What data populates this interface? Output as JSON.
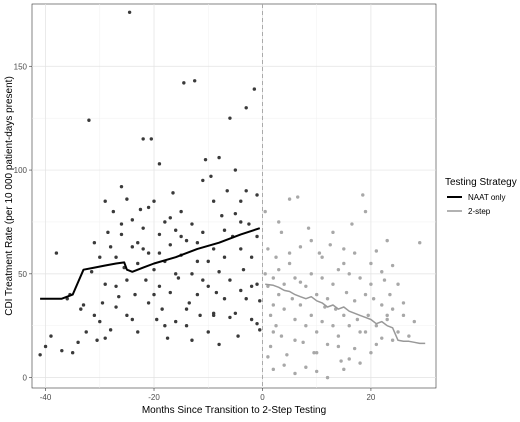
{
  "chart_data": {
    "type": "scatter",
    "title": "",
    "xlabel": "Months Since Transition to 2-Step Testing",
    "ylabel": "CDI Treatment Rate (per 10 000 patient-days present)",
    "xlim": [
      -42.5,
      32
    ],
    "ylim": [
      -5,
      180
    ],
    "x_ticks": [
      -40,
      -20,
      0,
      20
    ],
    "y_ticks": [
      0,
      50,
      100,
      150
    ],
    "grid": true,
    "vline": {
      "x": 0,
      "style": "dashed"
    },
    "legend": {
      "title": "Testing Strategy",
      "placement": "right",
      "entries": [
        {
          "label": "NAAT only",
          "color": "#000000"
        },
        {
          "label": "2-step",
          "color": "#999999"
        }
      ]
    },
    "series": [
      {
        "name": "NAAT only",
        "color": "#3a3a3a",
        "points": [
          [
            -41,
            11
          ],
          [
            -40,
            15
          ],
          [
            -39,
            20
          ],
          [
            -38,
            60
          ],
          [
            -37,
            13
          ],
          [
            -36,
            38
          ],
          [
            -35,
            12
          ],
          [
            -34,
            17
          ],
          [
            -33,
            35
          ],
          [
            -32.5,
            22
          ],
          [
            -32,
            124
          ],
          [
            -31.5,
            51
          ],
          [
            -31,
            30
          ],
          [
            -30.5,
            18
          ],
          [
            -30,
            27
          ],
          [
            -29.5,
            36
          ],
          [
            -29,
            19
          ],
          [
            -29,
            45
          ],
          [
            -28.5,
            70
          ],
          [
            -28,
            63
          ],
          [
            -28,
            23
          ],
          [
            -27.5,
            80
          ],
          [
            -27,
            58
          ],
          [
            -27,
            44
          ],
          [
            -26.5,
            39
          ],
          [
            -26,
            92
          ],
          [
            -26,
            69
          ],
          [
            -25.5,
            53
          ],
          [
            -25,
            86
          ],
          [
            -25,
            47
          ],
          [
            -25,
            30
          ],
          [
            -24.5,
            176
          ],
          [
            -24,
            76
          ],
          [
            -24,
            63
          ],
          [
            -23.5,
            40
          ],
          [
            -23,
            22
          ],
          [
            -23,
            55
          ],
          [
            -22.5,
            81
          ],
          [
            -22,
            115
          ],
          [
            -22,
            72
          ],
          [
            -21.5,
            47
          ],
          [
            -21,
            60
          ],
          [
            -21,
            36
          ],
          [
            -20.5,
            115
          ],
          [
            -20,
            85
          ],
          [
            -20,
            52
          ],
          [
            -19.5,
            28
          ],
          [
            -19,
            69
          ],
          [
            -19,
            44
          ],
          [
            -18.5,
            33
          ],
          [
            -18,
            75
          ],
          [
            -18,
            56
          ],
          [
            -17.5,
            19
          ],
          [
            -17,
            64
          ],
          [
            -17,
            41
          ],
          [
            -16.5,
            89
          ],
          [
            -16,
            71
          ],
          [
            -16,
            27
          ],
          [
            -15.5,
            48
          ],
          [
            -15,
            59
          ],
          [
            -15,
            80
          ],
          [
            -14.5,
            142
          ],
          [
            -14,
            33
          ],
          [
            -14,
            66
          ],
          [
            -13.5,
            36
          ],
          [
            -13,
            18
          ],
          [
            -13,
            50
          ],
          [
            -12.5,
            143
          ],
          [
            -12,
            65
          ],
          [
            -12,
            40
          ],
          [
            -11.5,
            30
          ],
          [
            -11,
            95
          ],
          [
            -11,
            70
          ],
          [
            -10.5,
            105
          ],
          [
            -10,
            56
          ],
          [
            -10,
            22
          ],
          [
            -9.5,
            97
          ],
          [
            -9,
            62
          ],
          [
            -9,
            85
          ],
          [
            -8.5,
            41
          ],
          [
            -8,
            106
          ],
          [
            -8,
            16
          ],
          [
            -7.5,
            78
          ],
          [
            -7,
            58
          ],
          [
            -7,
            38
          ],
          [
            -6.5,
            90
          ],
          [
            -6,
            125
          ],
          [
            -6,
            47
          ],
          [
            -5.5,
            68
          ],
          [
            -5,
            31
          ],
          [
            -5,
            100
          ],
          [
            -4.5,
            20
          ],
          [
            -4,
            62
          ],
          [
            -4,
            85
          ],
          [
            -3.5,
            52
          ],
          [
            -3,
            38
          ],
          [
            -3,
            130
          ],
          [
            -2.5,
            74
          ],
          [
            -2,
            28
          ],
          [
            -2,
            58
          ],
          [
            -1.5,
            139
          ],
          [
            -1,
            68
          ],
          [
            -1,
            45
          ],
          [
            -0.5,
            37
          ],
          [
            -0.5,
            23
          ],
          [
            -33.5,
            33
          ],
          [
            -31,
            65
          ],
          [
            -30,
            58
          ],
          [
            -27,
            34
          ],
          [
            -24,
            28
          ],
          [
            -22,
            62
          ],
          [
            -20,
            40
          ],
          [
            -18,
            25
          ],
          [
            -16,
            50
          ],
          [
            -14,
            25
          ],
          [
            -12,
            56
          ],
          [
            -10,
            44
          ],
          [
            -8,
            51
          ],
          [
            -6,
            29
          ],
          [
            -4,
            42
          ],
          [
            -2,
            44
          ],
          [
            -1,
            26
          ],
          [
            -29,
            85
          ],
          [
            -26,
            74
          ],
          [
            -23,
            65
          ],
          [
            -21,
            82
          ],
          [
            -19,
            60
          ],
          [
            -17,
            77
          ],
          [
            -15,
            68
          ],
          [
            -13,
            74
          ],
          [
            -11,
            47
          ],
          [
            -9,
            31
          ],
          [
            -7,
            71
          ],
          [
            -5,
            79
          ],
          [
            -3,
            90
          ],
          [
            -1,
            88
          ],
          [
            -35.5,
            40
          ],
          [
            -19,
            103
          ],
          [
            -9,
            30
          ],
          [
            -4,
            75
          ]
        ],
        "fit": [
          [
            -41,
            38
          ],
          [
            -37,
            38
          ],
          [
            -35,
            40
          ],
          [
            -34,
            46
          ],
          [
            -33,
            52
          ],
          [
            -31,
            53
          ],
          [
            -29,
            54
          ],
          [
            -27,
            55
          ],
          [
            -25.5,
            55.5
          ],
          [
            -25,
            52
          ],
          [
            -24,
            51
          ],
          [
            -22,
            53
          ],
          [
            -20,
            55
          ],
          [
            -16,
            58
          ],
          [
            -12,
            62
          ],
          [
            -8,
            65
          ],
          [
            -4,
            69
          ],
          [
            -0.5,
            72
          ]
        ]
      },
      {
        "name": "2-step",
        "color": "#a8a8a8",
        "points": [
          [
            0.5,
            50
          ],
          [
            0.5,
            80
          ],
          [
            1,
            62
          ],
          [
            1,
            44
          ],
          [
            1.5,
            30
          ],
          [
            1.5,
            15
          ],
          [
            2,
            48
          ],
          [
            2,
            35
          ],
          [
            2.5,
            58
          ],
          [
            2.5,
            25
          ],
          [
            3,
            52
          ],
          [
            3,
            40
          ],
          [
            3.5,
            70
          ],
          [
            3.5,
            20
          ],
          [
            4,
            45
          ],
          [
            4,
            33
          ],
          [
            4.5,
            11
          ],
          [
            5,
            86
          ],
          [
            5,
            55
          ],
          [
            5.5,
            38
          ],
          [
            6,
            28
          ],
          [
            6,
            48
          ],
          [
            6.5,
            87
          ],
          [
            7,
            63
          ],
          [
            7,
            35
          ],
          [
            7.5,
            17
          ],
          [
            8,
            44
          ],
          [
            8,
            25
          ],
          [
            8.5,
            72
          ],
          [
            9,
            30
          ],
          [
            9,
            50
          ],
          [
            9.5,
            12
          ],
          [
            10,
            40
          ],
          [
            10,
            22
          ],
          [
            10.5,
            60
          ],
          [
            11,
            27
          ],
          [
            11,
            48
          ],
          [
            11.5,
            34
          ],
          [
            12,
            38
          ],
          [
            12,
            16
          ],
          [
            12.5,
            64
          ],
          [
            13,
            25
          ],
          [
            13,
            45
          ],
          [
            13.5,
            33
          ],
          [
            14,
            52
          ],
          [
            14,
            20
          ],
          [
            14.5,
            8
          ],
          [
            15,
            30
          ],
          [
            15,
            62
          ],
          [
            15.5,
            41
          ],
          [
            16,
            25
          ],
          [
            16,
            50
          ],
          [
            16.5,
            74
          ],
          [
            17,
            37
          ],
          [
            17,
            14
          ],
          [
            17.5,
            28
          ],
          [
            18,
            48
          ],
          [
            18,
            22
          ],
          [
            18.5,
            88
          ],
          [
            19,
            40
          ],
          [
            19,
            80
          ],
          [
            19.5,
            30
          ],
          [
            20,
            12
          ],
          [
            20,
            55
          ],
          [
            20.5,
            38
          ],
          [
            21,
            25
          ],
          [
            21,
            61
          ],
          [
            22,
            35
          ],
          [
            22,
            19
          ],
          [
            22.5,
            47
          ],
          [
            23,
            28
          ],
          [
            23,
            66
          ],
          [
            23.5,
            40
          ],
          [
            24,
            33
          ],
          [
            24,
            18
          ],
          [
            25,
            45
          ],
          [
            25,
            22
          ],
          [
            26,
            30
          ],
          [
            27,
            20
          ],
          [
            29,
            65
          ],
          [
            12,
            0
          ],
          [
            10,
            3
          ],
          [
            8,
            5
          ],
          [
            6,
            2
          ],
          [
            4,
            6
          ],
          [
            2,
            4
          ],
          [
            15,
            4
          ],
          [
            18,
            7
          ],
          [
            1,
            10
          ],
          [
            3,
            75
          ],
          [
            5,
            60
          ],
          [
            7,
            46
          ],
          [
            9,
            66
          ],
          [
            11,
            58
          ],
          [
            13,
            70
          ],
          [
            15,
            55
          ],
          [
            17,
            60
          ],
          [
            20,
            45
          ],
          [
            22,
            51
          ],
          [
            24,
            54
          ],
          [
            2,
            22
          ],
          [
            6,
            18
          ],
          [
            10,
            12
          ],
          [
            14,
            15
          ],
          [
            16,
            9
          ],
          [
            19,
            22
          ],
          [
            21,
            16
          ],
          [
            23,
            30
          ],
          [
            26,
            36
          ],
          [
            28,
            27
          ]
        ],
        "fit": [
          [
            0.5,
            45
          ],
          [
            2,
            44.5
          ],
          [
            3,
            43.5
          ],
          [
            4,
            42
          ],
          [
            5,
            41.5
          ],
          [
            6,
            40
          ],
          [
            7,
            39
          ],
          [
            8,
            38
          ],
          [
            9,
            39
          ],
          [
            10,
            37
          ],
          [
            11,
            36
          ],
          [
            12,
            34
          ],
          [
            13,
            35
          ],
          [
            14,
            33
          ],
          [
            15,
            34
          ],
          [
            16,
            32
          ],
          [
            17,
            31
          ],
          [
            18,
            30
          ],
          [
            19,
            29
          ],
          [
            20,
            28
          ],
          [
            21,
            26
          ],
          [
            22,
            27
          ],
          [
            23,
            25
          ],
          [
            24,
            24
          ],
          [
            25,
            18
          ],
          [
            26,
            17.5
          ],
          [
            27,
            17.5
          ],
          [
            28,
            17
          ],
          [
            29,
            16.5
          ],
          [
            30,
            16.5
          ]
        ]
      }
    ]
  }
}
